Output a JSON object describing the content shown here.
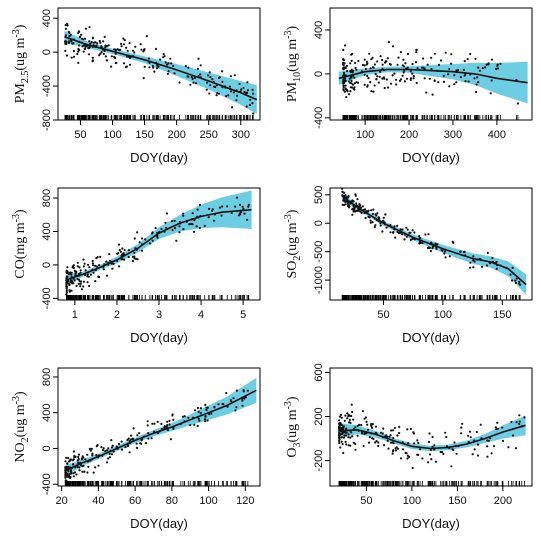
{
  "palette": {
    "band": "#6ccde3",
    "line": "#111111",
    "point": "#111111",
    "frame": "#000000"
  },
  "chart_data": [
    {
      "type": "scatter",
      "panel": "PM2.5",
      "ylabel": {
        "main": "PM",
        "sub": "2.5",
        "unit_pre": "(ug m",
        "sup": "-3",
        "unit_post": ")"
      },
      "xlabel": "DOY(day)",
      "xlim": [
        15,
        330
      ],
      "ylim": [
        -800,
        520
      ],
      "xticks": [
        50,
        100,
        150,
        200,
        250,
        300
      ],
      "yticks": [
        -800,
        -400,
        0,
        400
      ],
      "grid": false,
      "smooth_x": [
        25,
        60,
        100,
        150,
        200,
        250,
        300,
        325
      ],
      "smooth_y": [
        180,
        90,
        10,
        -90,
        -210,
        -340,
        -480,
        -560
      ],
      "band_half": [
        70,
        40,
        30,
        40,
        70,
        100,
        140,
        170
      ],
      "scatter": {
        "x0": 25,
        "x1": 320,
        "n": 230,
        "noise": 150,
        "skew": 1.6,
        "seed": 11
      }
    },
    {
      "type": "scatter",
      "panel": "PM10",
      "ylabel": {
        "main": "PM",
        "sub": "10",
        "unit_pre": "(ug m",
        "sup": "-3",
        "unit_post": ")"
      },
      "xlabel": "DOY(day)",
      "xlim": [
        20,
        480
      ],
      "ylim": [
        -420,
        600
      ],
      "xticks": [
        100,
        200,
        300,
        400
      ],
      "yticks": [
        -400,
        0,
        400
      ],
      "grid": false,
      "smooth_x": [
        40,
        100,
        150,
        200,
        250,
        300,
        350,
        400,
        470
      ],
      "smooth_y": [
        -40,
        20,
        40,
        40,
        30,
        20,
        0,
        -40,
        -80
      ],
      "band_half": [
        60,
        30,
        25,
        30,
        50,
        70,
        100,
        140,
        190
      ],
      "scatter": {
        "x0": 50,
        "x1": 450,
        "n": 240,
        "noise": 160,
        "skew": 2.2,
        "seed": 23
      }
    },
    {
      "type": "scatter",
      "panel": "CO",
      "ylabel": {
        "main": "CO",
        "sub": "",
        "unit_pre": "(mg m",
        "sup": "-3",
        "unit_post": ")"
      },
      "xlabel": "DOY(day)",
      "xlim": [
        0.6,
        5.4
      ],
      "ylim": [
        -420,
        920
      ],
      "xticks": [
        1,
        2,
        3,
        4,
        5
      ],
      "yticks": [
        -400,
        0,
        400,
        800
      ],
      "grid": false,
      "smooth_x": [
        0.8,
        1.2,
        1.6,
        2.0,
        2.5,
        3.0,
        3.5,
        4.0,
        4.5,
        5.2
      ],
      "smooth_y": [
        -180,
        -110,
        -30,
        60,
        200,
        380,
        500,
        580,
        630,
        660
      ],
      "band_half": [
        60,
        30,
        30,
        40,
        50,
        70,
        100,
        140,
        180,
        230
      ],
      "scatter": {
        "x0": 0.8,
        "x1": 5.2,
        "n": 230,
        "noise": 120,
        "skew": 2.6,
        "seed": 37
      }
    },
    {
      "type": "scatter",
      "panel": "SO2",
      "ylabel": {
        "main": "SO",
        "sub": "2",
        "unit_pre": "(ug m",
        "sup": "-3",
        "unit_post": ")"
      },
      "xlabel": "DOY(day)",
      "xlim": [
        5,
        175
      ],
      "ylim": [
        -1350,
        620
      ],
      "xticks": [
        50,
        100,
        150
      ],
      "yticks": [
        -1000,
        -500,
        0,
        500
      ],
      "grid": false,
      "smooth_x": [
        15,
        30,
        50,
        75,
        100,
        125,
        140,
        155,
        170
      ],
      "smooth_y": [
        480,
        250,
        0,
        -250,
        -450,
        -620,
        -680,
        -800,
        -1080
      ],
      "band_half": [
        50,
        40,
        40,
        50,
        70,
        90,
        100,
        130,
        180
      ],
      "scatter": {
        "x0": 15,
        "x1": 165,
        "n": 220,
        "noise": 120,
        "skew": 1.8,
        "seed": 53
      }
    },
    {
      "type": "scatter",
      "panel": "NO2",
      "ylabel": {
        "main": "NO",
        "sub": "2",
        "unit_pre": "(ug m",
        "sup": "-3",
        "unit_post": ")"
      },
      "xlabel": "DOY(day)",
      "xlim": [
        18,
        128
      ],
      "ylim": [
        -420,
        900
      ],
      "xticks": [
        20,
        40,
        60,
        80,
        100,
        120
      ],
      "yticks": [
        -400,
        0,
        400,
        800
      ],
      "grid": false,
      "smooth_x": [
        22,
        30,
        40,
        50,
        60,
        70,
        80,
        90,
        100,
        110,
        126
      ],
      "smooth_y": [
        -250,
        -170,
        -90,
        0,
        90,
        170,
        240,
        320,
        400,
        480,
        650
      ],
      "band_half": [
        60,
        40,
        30,
        30,
        30,
        35,
        45,
        60,
        80,
        100,
        140
      ],
      "scatter": {
        "x0": 22,
        "x1": 122,
        "n": 230,
        "noise": 110,
        "skew": 2.0,
        "seed": 71
      }
    },
    {
      "type": "scatter",
      "panel": "O3",
      "ylabel": {
        "main": "O",
        "sub": "3",
        "unit_pre": "(ug m",
        "sup": "-3",
        "unit_post": ")"
      },
      "xlabel": "DOY(day)",
      "xlim": [
        10,
        232
      ],
      "ylim": [
        -430,
        640
      ],
      "xticks": [
        50,
        100,
        150,
        200
      ],
      "yticks": [
        -200,
        200,
        600
      ],
      "grid": false,
      "smooth_x": [
        20,
        40,
        60,
        80,
        100,
        120,
        140,
        160,
        180,
        200,
        225
      ],
      "smooth_y": [
        70,
        80,
        40,
        -20,
        -70,
        -90,
        -80,
        -50,
        0,
        60,
        120
      ],
      "band_half": [
        70,
        40,
        30,
        25,
        25,
        25,
        25,
        30,
        40,
        60,
        90
      ],
      "scatter": {
        "x0": 20,
        "x1": 225,
        "n": 240,
        "noise": 130,
        "skew": 2.4,
        "seed": 89
      }
    }
  ]
}
